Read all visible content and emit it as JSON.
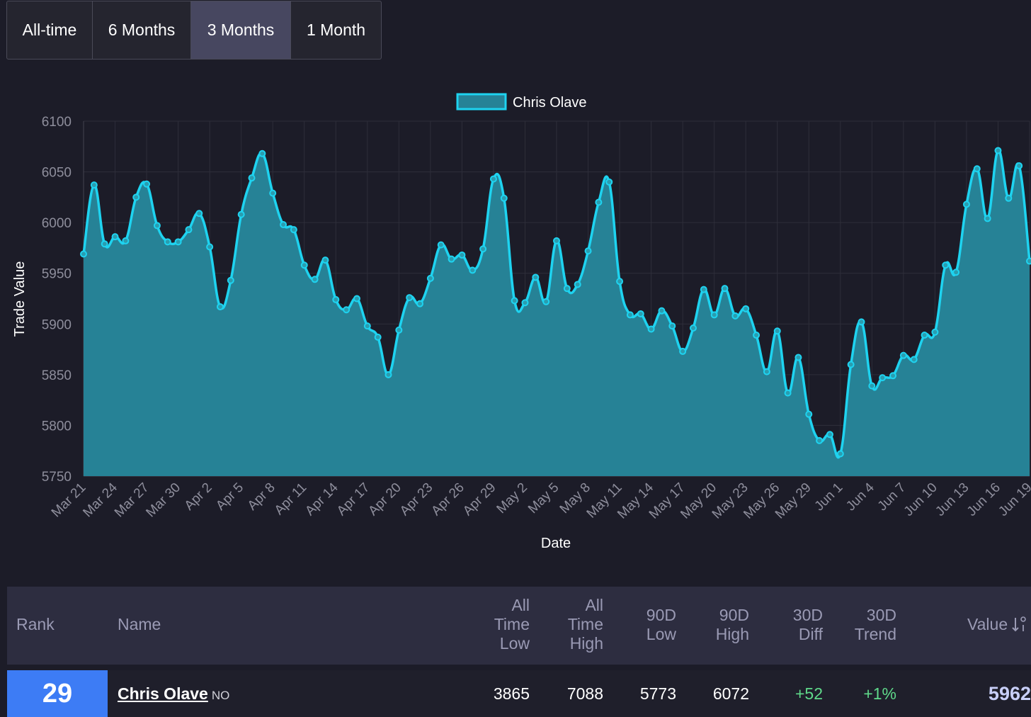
{
  "tabs": [
    {
      "label": "All-time",
      "active": false
    },
    {
      "label": "6 Months",
      "active": false
    },
    {
      "label": "3 Months",
      "active": true
    },
    {
      "label": "1 Month",
      "active": false
    }
  ],
  "chart_data": {
    "type": "area",
    "legend": "Chris Olave",
    "legend_position": "top-center",
    "xlabel": "Date",
    "ylabel": "Trade Value",
    "ylim": [
      5750,
      6100
    ],
    "yticks": [
      5750,
      5800,
      5850,
      5900,
      5950,
      6000,
      6050,
      6100
    ],
    "grid": true,
    "x_tick_labels": [
      "Mar 21",
      "Mar 24",
      "Mar 27",
      "Mar 30",
      "Apr 2",
      "Apr 5",
      "Apr 8",
      "Apr 11",
      "Apr 14",
      "Apr 17",
      "Apr 20",
      "Apr 23",
      "Apr 26",
      "Apr 29",
      "May 2",
      "May 5",
      "May 8",
      "May 11",
      "May 14",
      "May 17",
      "May 20",
      "May 23",
      "May 26",
      "May 29",
      "Jun 1",
      "Jun 4",
      "Jun 7",
      "Jun 10",
      "Jun 13",
      "Jun 16",
      "Jun 19"
    ],
    "values": [
      5969,
      6037,
      5979,
      5986,
      5982,
      6025,
      6038,
      5997,
      5981,
      5981,
      5993,
      6009,
      5976,
      5917,
      5943,
      6008,
      6044,
      6068,
      6029,
      5998,
      5993,
      5958,
      5944,
      5963,
      5924,
      5914,
      5925,
      5898,
      5887,
      5850,
      5894,
      5926,
      5920,
      5945,
      5978,
      5964,
      5968,
      5953,
      5974,
      6043,
      6024,
      5923,
      5921,
      5946,
      5922,
      5982,
      5935,
      5939,
      5972,
      6020,
      6040,
      5942,
      5909,
      5910,
      5895,
      5913,
      5898,
      5873,
      5896,
      5934,
      5909,
      5935,
      5908,
      5915,
      5889,
      5853,
      5893,
      5832,
      5867,
      5811,
      5785,
      5791,
      5772,
      5860,
      5902,
      5839,
      5847,
      5849,
      5869,
      5865,
      5889,
      5892,
      5958,
      5951,
      6018,
      6053,
      6004,
      6071,
      6024,
      6056,
      5962
    ],
    "colors": {
      "line": "#1ed3f0",
      "fill": "#268296",
      "grid": "#2e2e3a",
      "text": "#ffffff",
      "tick": "#8e8e9c"
    }
  },
  "table": {
    "headers": {
      "rank": "Rank",
      "name": "Name",
      "all_time_low": [
        "All",
        "Time",
        "Low"
      ],
      "all_time_high": [
        "All",
        "Time",
        "High"
      ],
      "low_90d": [
        "90D",
        "Low"
      ],
      "high_90d": [
        "90D",
        "High"
      ],
      "diff_30d": [
        "30D",
        "Diff"
      ],
      "trend_30d": [
        "30D",
        "Trend"
      ],
      "value": "Value",
      "sort_icon": "sort-descending-icon"
    },
    "row": {
      "rank": "29",
      "name": "Chris Olave",
      "team": "NO",
      "all_time_low": "3865",
      "all_time_high": "7088",
      "low_90d": "5773",
      "high_90d": "6072",
      "diff_30d": "+52",
      "trend_30d": "+1%",
      "value": "5962"
    }
  }
}
